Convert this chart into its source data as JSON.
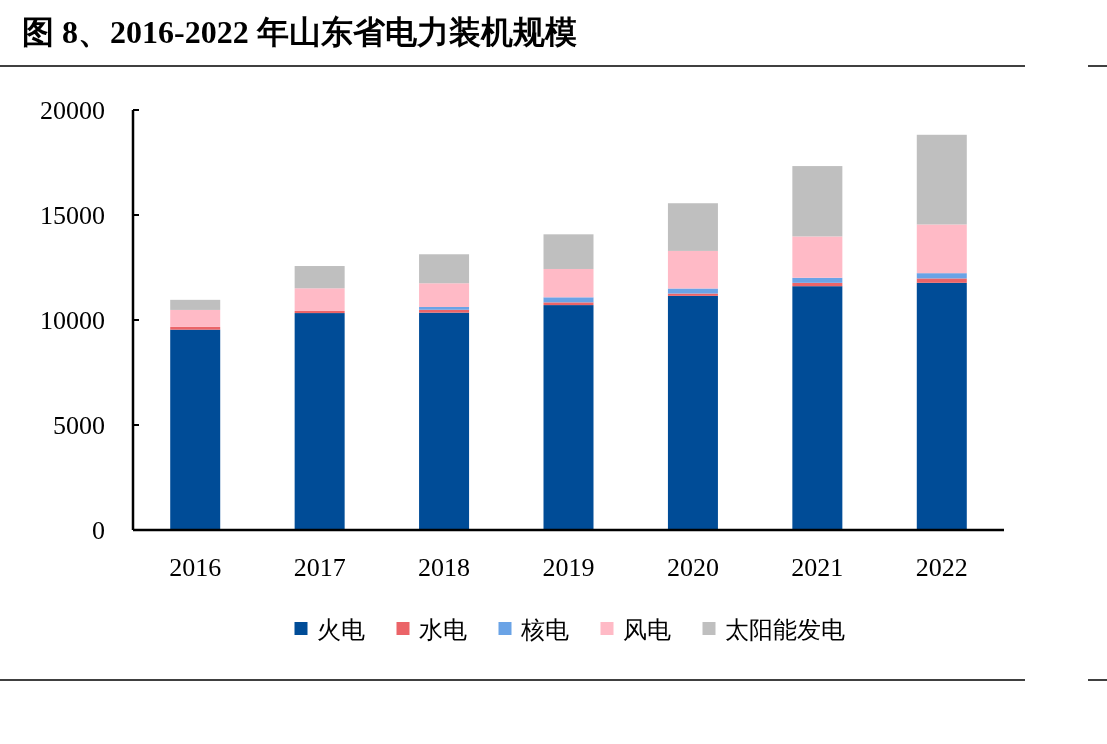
{
  "chart_data": {
    "type": "bar",
    "title": "图 8、2016-2022 年山东省电力装机规模",
    "stacked": true,
    "legend": "bottom",
    "grid": false,
    "categories": [
      "2016",
      "2017",
      "2018",
      "2019",
      "2020",
      "2021",
      "2022"
    ],
    "ylim": [
      0,
      20000
    ],
    "yticks": [
      0,
      5000,
      10000,
      15000,
      20000
    ],
    "series": [
      {
        "name": "火电",
        "color": "#004c97",
        "values": [
          9540,
          10330,
          10350,
          10710,
          11150,
          11610,
          11770
        ]
      },
      {
        "name": "水电",
        "color": "#eb6468",
        "values": [
          130,
          100,
          140,
          130,
          110,
          160,
          210
        ]
      },
      {
        "name": "核电",
        "color": "#6aa3e6",
        "values": [
          0,
          0,
          130,
          240,
          240,
          240,
          250
        ]
      },
      {
        "name": "风电",
        "color": "#ffbac6",
        "values": [
          810,
          1080,
          1130,
          1350,
          1790,
          1970,
          2320
        ]
      },
      {
        "name": "太阳能发电",
        "color": "#bfbfbf",
        "values": [
          480,
          1060,
          1380,
          1650,
          2270,
          3350,
          4270
        ]
      }
    ]
  }
}
